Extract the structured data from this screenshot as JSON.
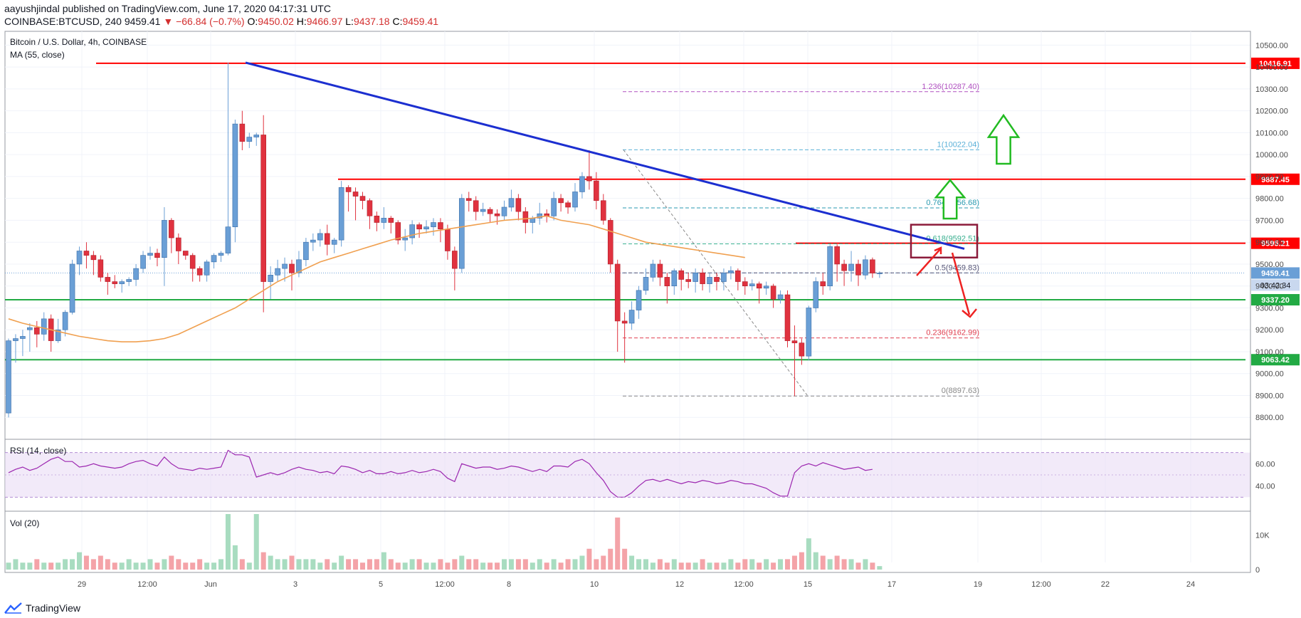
{
  "header": {
    "author": "aayushjindal",
    "published_text": "published on TradingView.com, June 17, 2020 04:17:31 UTC",
    "symbol": "COINBASE:BTCUSD, 240",
    "last": "9459.41",
    "change": "▼ −66.84 (−0.7%)",
    "o_label": "O:",
    "o_value": "9450.02",
    "h_label": "H:",
    "h_value": "9466.97",
    "l_label": "L:",
    "l_value": "9437.18",
    "c_label": "C:",
    "c_value": "9459.41"
  },
  "legend": {
    "title": "Bitcoin / U.S. Dollar, 4h, COINBASE",
    "ma": "MA (55, close)",
    "rsi": "RSI (14, close)",
    "vol": "Vol (20)"
  },
  "footer": {
    "brand": "TradingView",
    "logo_icon": "tradingview-logo-icon"
  },
  "colors": {
    "up": "#6a9fd6",
    "down": "#e0323f",
    "ma": "#f0a050",
    "resistance": "#ff0000",
    "support": "#22aa44",
    "trend": "#1c2fd0",
    "rsi": "#9c27b0",
    "box": "#8b1a3a",
    "arrow_up": "#22bb22",
    "arrow_dn": "#ee2222"
  },
  "chart_data": {
    "type": "candlestick",
    "price_axis": {
      "ylim": [
        8700,
        10550
      ],
      "ticks": [
        "8800.00",
        "8900.00",
        "9000.00",
        "9100.00",
        "9200.00",
        "9300.00",
        "9400.00",
        "9500.00",
        "9600.00",
        "9700.00",
        "9800.00",
        "9900.00",
        "10000.00",
        "10100.00",
        "10200.00",
        "10300.00",
        "10400.00",
        "10500.00"
      ]
    },
    "time_axis": {
      "ticks": [
        "29",
        "12:00",
        "Jun",
        "3",
        "5",
        "12:00",
        "8",
        "10",
        "12",
        "12:00",
        "15",
        "17",
        "19",
        "12:00",
        "22",
        "24"
      ]
    },
    "candles": [
      [
        8820,
        9150,
        8800,
        9160
      ],
      [
        9150,
        9160,
        9050,
        9180
      ],
      [
        9160,
        9170,
        9080,
        9200
      ],
      [
        9200,
        9210,
        9100,
        9230
      ],
      [
        9210,
        9180,
        9120,
        9240
      ],
      [
        9180,
        9250,
        9150,
        9280
      ],
      [
        9250,
        9150,
        9100,
        9270
      ],
      [
        9150,
        9200,
        9140,
        9250
      ],
      [
        9200,
        9280,
        9170,
        9290
      ],
      [
        9280,
        9500,
        9270,
        9520
      ],
      [
        9500,
        9560,
        9450,
        9580
      ],
      [
        9560,
        9540,
        9480,
        9600
      ],
      [
        9540,
        9520,
        9450,
        9560
      ],
      [
        9520,
        9440,
        9420,
        9540
      ],
      [
        9440,
        9420,
        9360,
        9460
      ],
      [
        9420,
        9410,
        9390,
        9450
      ],
      [
        9410,
        9420,
        9370,
        9430
      ],
      [
        9420,
        9430,
        9400,
        9440
      ],
      [
        9430,
        9480,
        9400,
        9500
      ],
      [
        9480,
        9540,
        9460,
        9560
      ],
      [
        9540,
        9550,
        9520,
        9580
      ],
      [
        9550,
        9530,
        9490,
        9570
      ],
      [
        9530,
        9700,
        9400,
        9760
      ],
      [
        9700,
        9620,
        9550,
        9710
      ],
      [
        9620,
        9560,
        9500,
        9640
      ],
      [
        9560,
        9540,
        9520,
        9560
      ],
      [
        9540,
        9480,
        9420,
        9550
      ],
      [
        9480,
        9450,
        9420,
        9490
      ],
      [
        9450,
        9510,
        9420,
        9520
      ],
      [
        9510,
        9540,
        9480,
        9550
      ],
      [
        9540,
        9550,
        9510,
        9560
      ],
      [
        9550,
        9670,
        9540,
        10420
      ],
      [
        9670,
        10140,
        9600,
        10160
      ],
      [
        10140,
        10060,
        10020,
        10200
      ],
      [
        10060,
        10080,
        10030,
        10100
      ],
      [
        10080,
        10090,
        10040,
        10100
      ],
      [
        10090,
        9420,
        9280,
        10180
      ],
      [
        9420,
        9450,
        9340,
        9490
      ],
      [
        9450,
        9480,
        9420,
        9520
      ],
      [
        9480,
        9500,
        9420,
        9530
      ],
      [
        9500,
        9460,
        9380,
        9520
      ],
      [
        9460,
        9520,
        9440,
        9560
      ],
      [
        9520,
        9600,
        9490,
        9620
      ],
      [
        9600,
        9610,
        9560,
        9640
      ],
      [
        9610,
        9640,
        9580,
        9660
      ],
      [
        9640,
        9590,
        9540,
        9680
      ],
      [
        9590,
        9610,
        9550,
        9620
      ],
      [
        9610,
        9850,
        9580,
        9880
      ],
      [
        9850,
        9830,
        9740,
        9860
      ],
      [
        9830,
        9810,
        9700,
        9850
      ],
      [
        9810,
        9790,
        9750,
        9830
      ],
      [
        9790,
        9720,
        9660,
        9800
      ],
      [
        9720,
        9690,
        9650,
        9740
      ],
      [
        9690,
        9710,
        9660,
        9760
      ],
      [
        9710,
        9690,
        9640,
        9720
      ],
      [
        9690,
        9610,
        9590,
        9700
      ],
      [
        9610,
        9620,
        9560,
        9660
      ],
      [
        9620,
        9680,
        9590,
        9700
      ],
      [
        9680,
        9660,
        9620,
        9690
      ],
      [
        9660,
        9670,
        9640,
        9700
      ],
      [
        9670,
        9690,
        9630,
        9710
      ],
      [
        9690,
        9660,
        9600,
        9710
      ],
      [
        9660,
        9560,
        9520,
        9680
      ],
      [
        9560,
        9480,
        9380,
        9580
      ],
      [
        9480,
        9800,
        9460,
        9820
      ],
      [
        9800,
        9790,
        9740,
        9830
      ],
      [
        9790,
        9740,
        9700,
        9810
      ],
      [
        9740,
        9750,
        9720,
        9780
      ],
      [
        9750,
        9730,
        9690,
        9760
      ],
      [
        9730,
        9720,
        9680,
        9750
      ],
      [
        9720,
        9760,
        9700,
        9790
      ],
      [
        9760,
        9800,
        9740,
        9840
      ],
      [
        9800,
        9740,
        9700,
        9820
      ],
      [
        9740,
        9690,
        9640,
        9760
      ],
      [
        9690,
        9710,
        9640,
        9720
      ],
      [
        9710,
        9730,
        9680,
        9780
      ],
      [
        9730,
        9720,
        9690,
        9750
      ],
      [
        9720,
        9800,
        9700,
        9830
      ],
      [
        9800,
        9780,
        9740,
        9820
      ],
      [
        9780,
        9760,
        9730,
        9790
      ],
      [
        9760,
        9830,
        9740,
        9870
      ],
      [
        9830,
        9900,
        9800,
        9920
      ],
      [
        9900,
        9880,
        9840,
        10020
      ],
      [
        9880,
        9790,
        9750,
        9920
      ],
      [
        9790,
        9700,
        9680,
        9820
      ],
      [
        9700,
        9500,
        9460,
        9710
      ],
      [
        9500,
        9240,
        9100,
        9520
      ],
      [
        9240,
        9230,
        9050,
        9280
      ],
      [
        9230,
        9290,
        9200,
        9330
      ],
      [
        9290,
        9380,
        9250,
        9400
      ],
      [
        9380,
        9440,
        9360,
        9480
      ],
      [
        9440,
        9500,
        9420,
        9520
      ],
      [
        9500,
        9440,
        9400,
        9520
      ],
      [
        9440,
        9400,
        9320,
        9460
      ],
      [
        9400,
        9470,
        9360,
        9480
      ],
      [
        9470,
        9430,
        9380,
        9480
      ],
      [
        9430,
        9420,
        9390,
        9460
      ],
      [
        9420,
        9460,
        9370,
        9480
      ],
      [
        9460,
        9410,
        9380,
        9480
      ],
      [
        9410,
        9440,
        9370,
        9460
      ],
      [
        9440,
        9420,
        9380,
        9460
      ],
      [
        9420,
        9460,
        9380,
        9480
      ],
      [
        9460,
        9470,
        9430,
        9490
      ],
      [
        9470,
        9420,
        9380,
        9480
      ],
      [
        9420,
        9400,
        9360,
        9440
      ],
      [
        9400,
        9410,
        9380,
        9430
      ],
      [
        9410,
        9390,
        9320,
        9420
      ],
      [
        9390,
        9400,
        9360,
        9420
      ],
      [
        9400,
        9340,
        9300,
        9410
      ],
      [
        9340,
        9360,
        9320,
        9380
      ],
      [
        9360,
        9150,
        9120,
        9380
      ],
      [
        9150,
        9140,
        8897,
        9220
      ],
      [
        9140,
        9080,
        9040,
        9160
      ],
      [
        9080,
        9300,
        9060,
        9310
      ],
      [
        9300,
        9420,
        9280,
        9440
      ],
      [
        9420,
        9400,
        9360,
        9460
      ],
      [
        9400,
        9580,
        9380,
        9590
      ],
      [
        9580,
        9500,
        9420,
        9590
      ],
      [
        9500,
        9470,
        9400,
        9520
      ],
      [
        9470,
        9500,
        9420,
        9560
      ],
      [
        9500,
        9450,
        9400,
        9520
      ],
      [
        9450,
        9520,
        9430,
        9540
      ],
      [
        9520,
        9459,
        9437,
        9530
      ],
      [
        9459,
        9459,
        9437,
        9467
      ]
    ],
    "ma55": [
      9250,
      9230,
      9215,
      9200,
      9185,
      9170,
      9160,
      9150,
      9145,
      9145,
      9150,
      9160,
      9180,
      9210,
      9240,
      9270,
      9300,
      9340,
      9380,
      9420,
      9450,
      9480,
      9510,
      9530,
      9550,
      9570,
      9590,
      9610,
      9625,
      9640,
      9650,
      9660,
      9670,
      9680,
      9690,
      9700,
      9705,
      9710,
      9720,
      9700,
      9690,
      9680,
      9660,
      9640,
      9620,
      9600,
      9590,
      9580,
      9570,
      9560,
      9550,
      9540,
      9530
    ],
    "ma55_x_start": 0,
    "ma55_step": 2,
    "volume_max": 16000,
    "volume_ticks": [
      "10K",
      "0"
    ],
    "volume": [
      2,
      3,
      2,
      2,
      3,
      2,
      2,
      2,
      3,
      3,
      5,
      4,
      3,
      4,
      3,
      2,
      2,
      3,
      2,
      2,
      3,
      2,
      3,
      4,
      3,
      2,
      2,
      3,
      2,
      2,
      3,
      16,
      7,
      3,
      2,
      16,
      5,
      4,
      3,
      3,
      4,
      3,
      3,
      3,
      2,
      3,
      2,
      4,
      3,
      3,
      2,
      3,
      3,
      5,
      3,
      2,
      2,
      3,
      3,
      2,
      2,
      3,
      2,
      3,
      4,
      3,
      3,
      2,
      2,
      2,
      3,
      3,
      3,
      3,
      2,
      3,
      2,
      3,
      2,
      3,
      3,
      4,
      6,
      3,
      4,
      6,
      15,
      6,
      4,
      3,
      3,
      2,
      3,
      2,
      3,
      2,
      2,
      2,
      3,
      2,
      2,
      2,
      3,
      2,
      3,
      3,
      2,
      3,
      2,
      3,
      3,
      4,
      5,
      9,
      5,
      4,
      3,
      4,
      3,
      3,
      2,
      3,
      2,
      1
    ],
    "rsi": [
      52,
      55,
      57,
      54,
      56,
      60,
      64,
      66,
      62,
      62,
      57,
      58,
      60,
      58,
      57,
      56,
      57,
      60,
      62,
      63,
      60,
      58,
      66,
      60,
      56,
      55,
      54,
      56,
      55,
      56,
      57,
      72,
      68,
      68,
      66,
      48,
      50,
      52,
      50,
      52,
      55,
      57,
      55,
      54,
      52,
      53,
      51,
      58,
      57,
      55,
      52,
      54,
      51,
      51,
      53,
      51,
      52,
      54,
      52,
      53,
      55,
      53,
      47,
      44,
      60,
      58,
      56,
      57,
      57,
      55,
      56,
      58,
      57,
      55,
      53,
      55,
      53,
      58,
      58,
      57,
      62,
      64,
      60,
      52,
      45,
      35,
      30,
      30,
      34,
      40,
      45,
      46,
      44,
      46,
      44,
      42,
      44,
      43,
      45,
      44,
      42,
      43,
      45,
      44,
      42,
      42,
      40,
      38,
      34,
      31,
      31,
      52,
      58,
      60,
      58,
      61,
      59,
      57,
      55,
      56,
      57,
      54,
      55
    ],
    "rsi_ylim": [
      20,
      80
    ],
    "rsi_ticks": [
      "60.00",
      "40.00"
    ],
    "lines": {
      "resistance_top": {
        "price": 10416.91,
        "label": "10416.91"
      },
      "resistance_mid": {
        "price": 9887.45,
        "label": "9887.45"
      },
      "resistance_low": {
        "price": 9595.21,
        "label": "9595.21"
      },
      "support_high": {
        "price": 9337.2,
        "label": "9337.20"
      },
      "support_low": {
        "price": 9063.42,
        "label": "9063.42"
      },
      "last_price": {
        "price": 9459.41,
        "label": "9459.41",
        "countdown": "03:42:34"
      }
    },
    "fib": [
      {
        "ratio": "1.236",
        "price": 10287.4,
        "label": "1.236(10287.40)",
        "color": "#b050c0"
      },
      {
        "ratio": "1",
        "price": 10022.04,
        "label": "1(10022.04)",
        "color": "#5ab0d8"
      },
      {
        "ratio": "0.764",
        "price": 9756.68,
        "label": "0.764(9756.68)",
        "color": "#2a9ab0"
      },
      {
        "ratio": "0.618",
        "price": 9592.51,
        "label": "0.618(9592.51)",
        "color": "#3ab090"
      },
      {
        "ratio": "0.5",
        "price": 9459.83,
        "label": "0.5(9459.83)",
        "color": "#555577"
      },
      {
        "ratio": "0.236",
        "price": 9162.99,
        "label": "0.236(9162.99)",
        "color": "#e04050"
      },
      {
        "ratio": "0",
        "price": 8897.63,
        "label": "0(8897.63)",
        "color": "#888888"
      }
    ]
  }
}
